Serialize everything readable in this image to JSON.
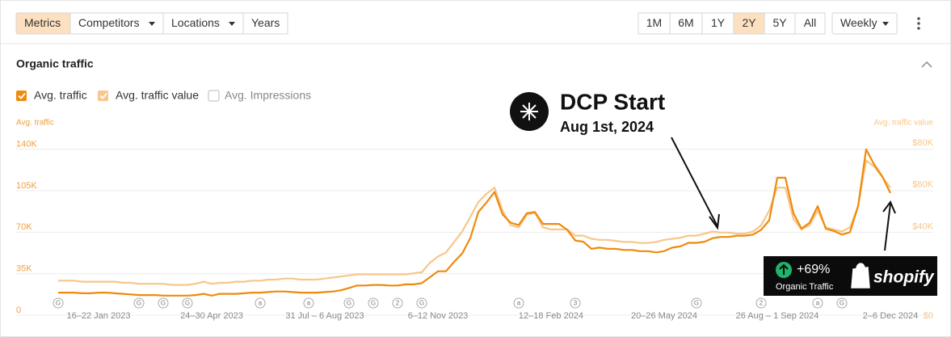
{
  "toolbar": {
    "tabs": [
      "Metrics",
      "Competitors",
      "Locations",
      "Years"
    ],
    "ranges": [
      "1M",
      "6M",
      "1Y",
      "2Y",
      "5Y",
      "All"
    ],
    "interval": "Weekly"
  },
  "section_title": "Organic traffic",
  "chart_data": {
    "type": "line",
    "ylabel": "Avg. traffic",
    "y2label": "Avg. traffic value",
    "inactive_series": [
      "Avg. Impressions"
    ],
    "grid": true,
    "ylim": [
      0,
      150000
    ],
    "yticks": [
      0,
      {
        "value": 35000,
        "label": "35K"
      },
      {
        "value": 70000,
        "label": "70K"
      },
      {
        "value": 105000,
        "label": "105K"
      },
      {
        "value": 140000,
        "label": "140K"
      }
    ],
    "y2lim": [
      0,
      85000
    ],
    "y2ticks": [
      {
        "value": 0,
        "label": "$0"
      },
      {
        "value": 40000,
        "label": "$40K"
      },
      {
        "value": 60000,
        "label": "$60K"
      },
      {
        "value": 80000,
        "label": "$80K"
      }
    ],
    "categories": [
      null,
      null,
      null,
      null,
      null,
      "16–22 Jan 2023",
      null,
      null,
      null,
      null,
      null,
      null,
      null,
      null,
      null,
      null,
      null,
      null,
      null,
      "24–30 Apr 2023",
      null,
      null,
      null,
      null,
      null,
      null,
      null,
      null,
      null,
      null,
      null,
      null,
      null,
      "31 Jul – 6 Aug 2023",
      null,
      null,
      null,
      null,
      null,
      null,
      null,
      null,
      null,
      null,
      null,
      null,
      null,
      "6–12 Nov 2023",
      null,
      null,
      null,
      null,
      null,
      null,
      null,
      null,
      null,
      null,
      null,
      null,
      null,
      "12–18 Feb 2024",
      null,
      null,
      null,
      null,
      null,
      null,
      null,
      null,
      null,
      null,
      null,
      null,
      null,
      "20–26 May 2024",
      null,
      null,
      null,
      null,
      null,
      null,
      null,
      null,
      null,
      null,
      null,
      null,
      null,
      "26 Aug – 1 Sep 2024",
      null,
      null,
      null,
      null,
      null,
      null,
      null,
      null,
      null,
      null,
      null,
      null,
      null,
      "2–6 Dec 2024"
    ],
    "event_markers": [
      "G",
      null,
      null,
      null,
      null,
      null,
      null,
      null,
      null,
      null,
      "G",
      null,
      null,
      "G",
      null,
      null,
      "G",
      null,
      null,
      null,
      null,
      null,
      null,
      null,
      null,
      "a",
      null,
      null,
      null,
      null,
      null,
      "a",
      null,
      null,
      null,
      null,
      "G",
      null,
      null,
      "G",
      null,
      null,
      "2",
      null,
      null,
      "G",
      null,
      null,
      null,
      null,
      null,
      null,
      null,
      null,
      null,
      null,
      null,
      "a",
      null,
      null,
      null,
      null,
      null,
      null,
      "3",
      null,
      null,
      null,
      null,
      null,
      null,
      null,
      null,
      null,
      null,
      null,
      null,
      null,
      null,
      "G",
      null,
      null,
      null,
      null,
      null,
      null,
      null,
      "2",
      null,
      null,
      null,
      null,
      null,
      null,
      "a",
      null,
      null,
      "G",
      null,
      null,
      null,
      null,
      null,
      null
    ],
    "series": [
      {
        "name": "Avg. traffic",
        "color": "#ef8a0c",
        "axis": "y",
        "values": [
          19000,
          19000,
          19000,
          18500,
          18500,
          19000,
          19000,
          18500,
          18000,
          17500,
          17000,
          17000,
          17000,
          16500,
          16500,
          16500,
          16500,
          17000,
          18000,
          16500,
          18000,
          18000,
          18000,
          18500,
          19000,
          19000,
          19500,
          20000,
          20000,
          19500,
          19000,
          19000,
          19000,
          19500,
          20000,
          21000,
          23000,
          25000,
          25000,
          25500,
          25500,
          25000,
          25000,
          26000,
          26000,
          27000,
          32000,
          37000,
          37000,
          45000,
          52000,
          65000,
          87000,
          95000,
          104000,
          85000,
          78000,
          76000,
          86000,
          87000,
          77000,
          77000,
          77000,
          72000,
          63000,
          62000,
          56000,
          57000,
          56000,
          56000,
          55000,
          55000,
          54000,
          54000,
          53000,
          54000,
          57000,
          58000,
          61000,
          61000,
          62000,
          65000,
          66000,
          66000,
          67000,
          67000,
          68000,
          72000,
          80000,
          116000,
          116000,
          86000,
          73000,
          78000,
          92000,
          73000,
          71000,
          68000,
          70000,
          92000,
          140000,
          127000,
          117000,
          103000
        ]
      },
      {
        "name": "Avg. traffic value",
        "color": "#f8c68a",
        "axis": "y2",
        "values": [
          16500,
          16500,
          16500,
          16000,
          16000,
          16000,
          16000,
          16000,
          15500,
          15500,
          15000,
          15000,
          15000,
          15000,
          14500,
          14500,
          14500,
          15000,
          16000,
          15000,
          15500,
          15500,
          16000,
          16000,
          16500,
          16500,
          17000,
          17000,
          17500,
          17500,
          17000,
          17000,
          17000,
          17500,
          18000,
          18500,
          19000,
          19500,
          19500,
          19500,
          19500,
          19500,
          19500,
          19500,
          20000,
          20500,
          25000,
          28000,
          30000,
          35000,
          40000,
          47000,
          54000,
          58000,
          61000,
          50000,
          43000,
          42000,
          48000,
          49000,
          42000,
          41000,
          41000,
          41000,
          38000,
          38000,
          36500,
          36000,
          36000,
          35500,
          35000,
          35000,
          34500,
          34500,
          35000,
          36000,
          36500,
          37000,
          38000,
          38000,
          39000,
          40000,
          39500,
          39500,
          39000,
          39000,
          40000,
          43000,
          50000,
          61000,
          61000,
          46000,
          41000,
          43000,
          50000,
          42000,
          41000,
          40000,
          42000,
          52000,
          74000,
          71000,
          66000,
          61000
        ]
      }
    ]
  },
  "annotation": {
    "title": "DCP Start",
    "date": "Aug 1st, 2024"
  },
  "badge": {
    "change": "+69%",
    "label": "Organic Traffic",
    "brand": "shopify"
  }
}
